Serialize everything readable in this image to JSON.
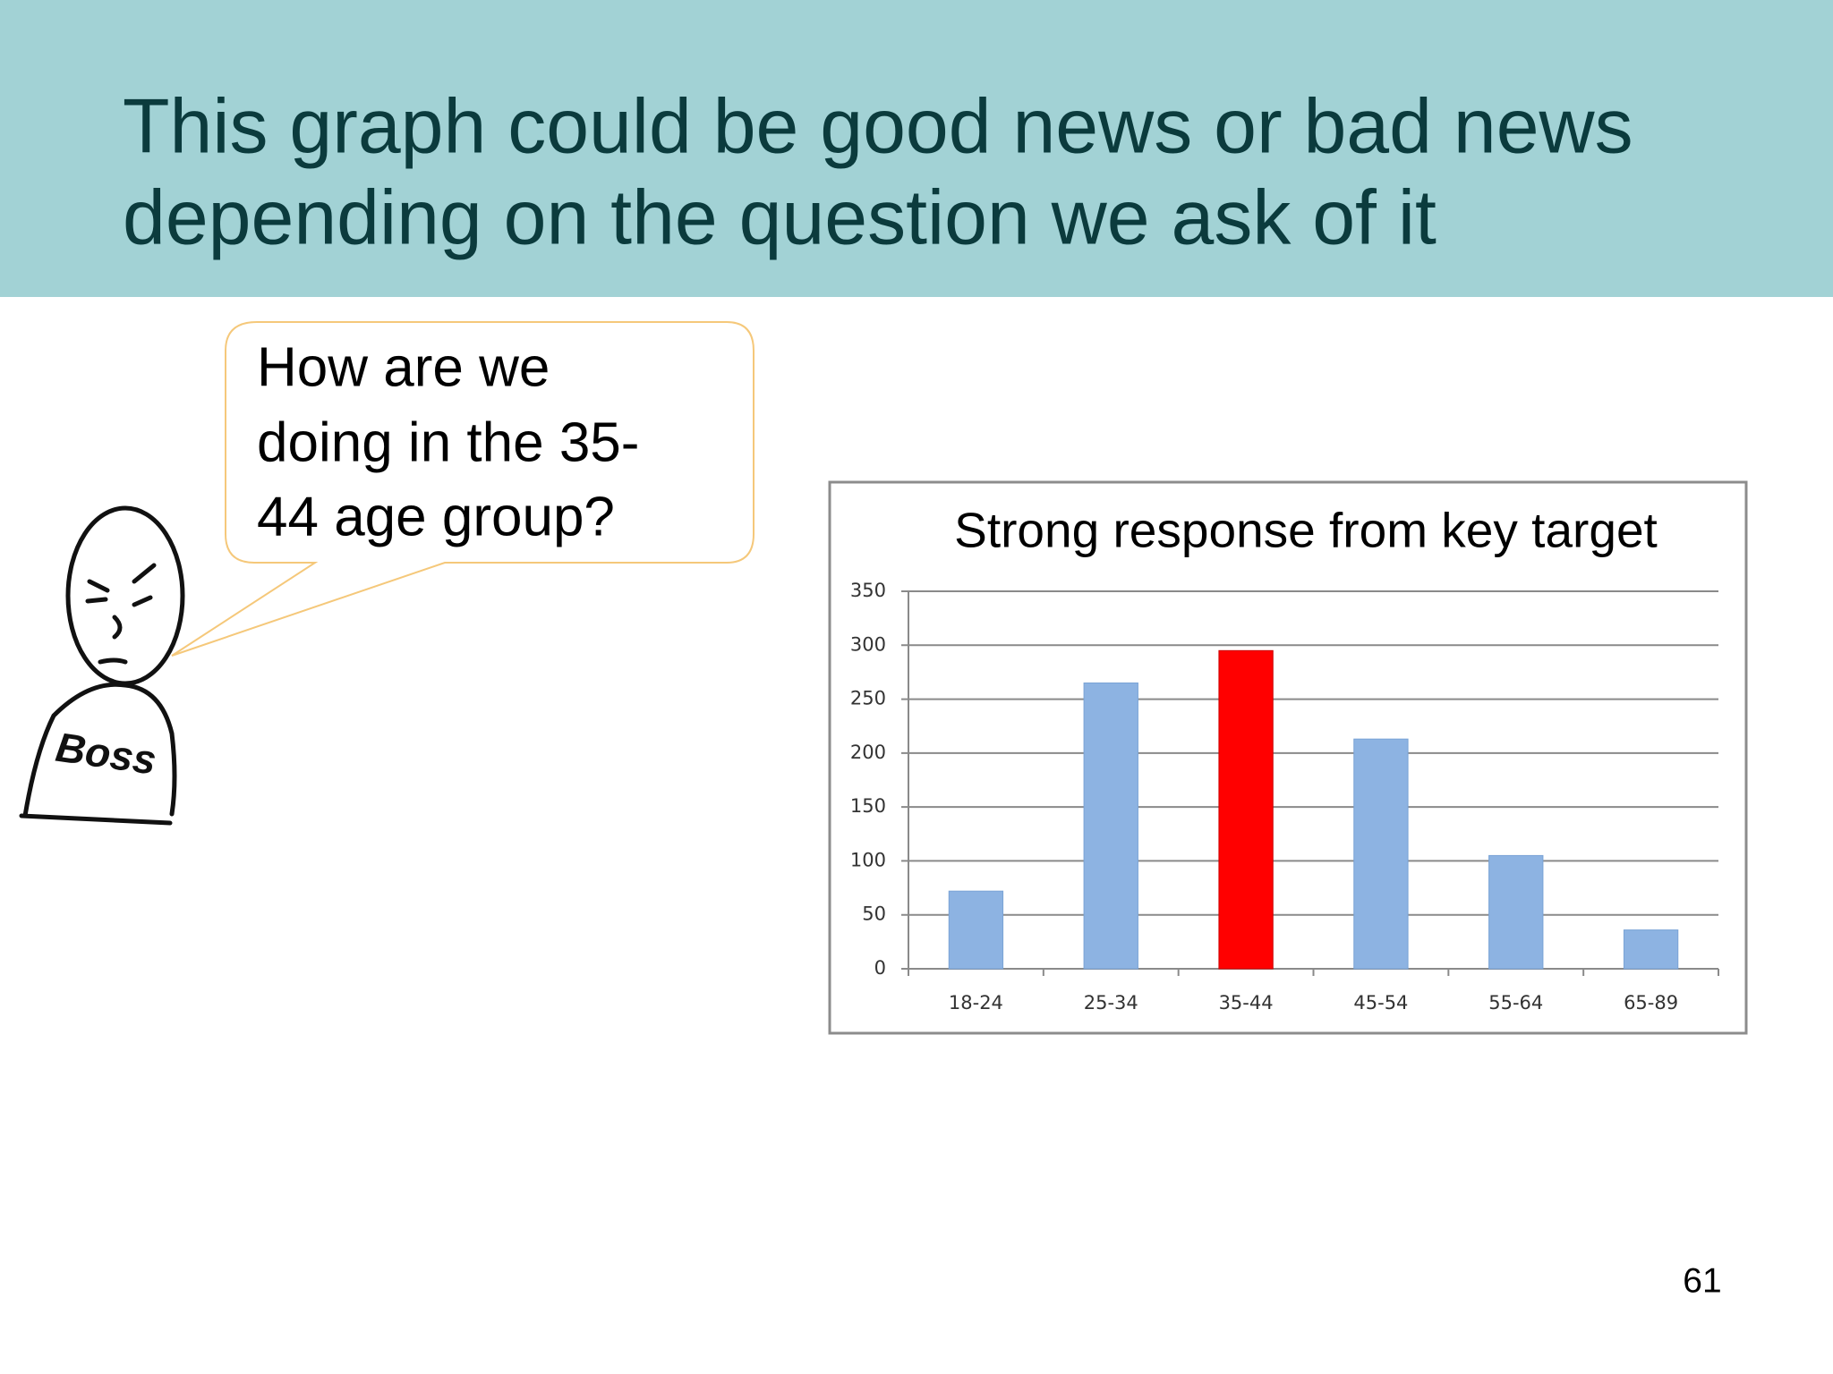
{
  "slide_title": [
    "This graph could be good news or bad news",
    "depending on the question we ask of it"
  ],
  "speech_bubble": [
    "How are we",
    "doing in the 35-",
    "44 age group?"
  ],
  "figure_label": "Boss",
  "page_number": "61",
  "chart_data": {
    "type": "bar",
    "title": "Strong response from key target",
    "categories": [
      "18-24",
      "25-34",
      "35-44",
      "45-54",
      "55-64",
      "65-89"
    ],
    "values": [
      72,
      265,
      295,
      213,
      105,
      36
    ],
    "colors": [
      "#8db3e2",
      "#8db3e2",
      "#ff0000",
      "#8db3e2",
      "#8db3e2",
      "#8db3e2"
    ],
    "ylim": [
      0,
      350
    ],
    "yticks": [
      0,
      50,
      100,
      150,
      200,
      250,
      300,
      350
    ],
    "grid": true
  }
}
